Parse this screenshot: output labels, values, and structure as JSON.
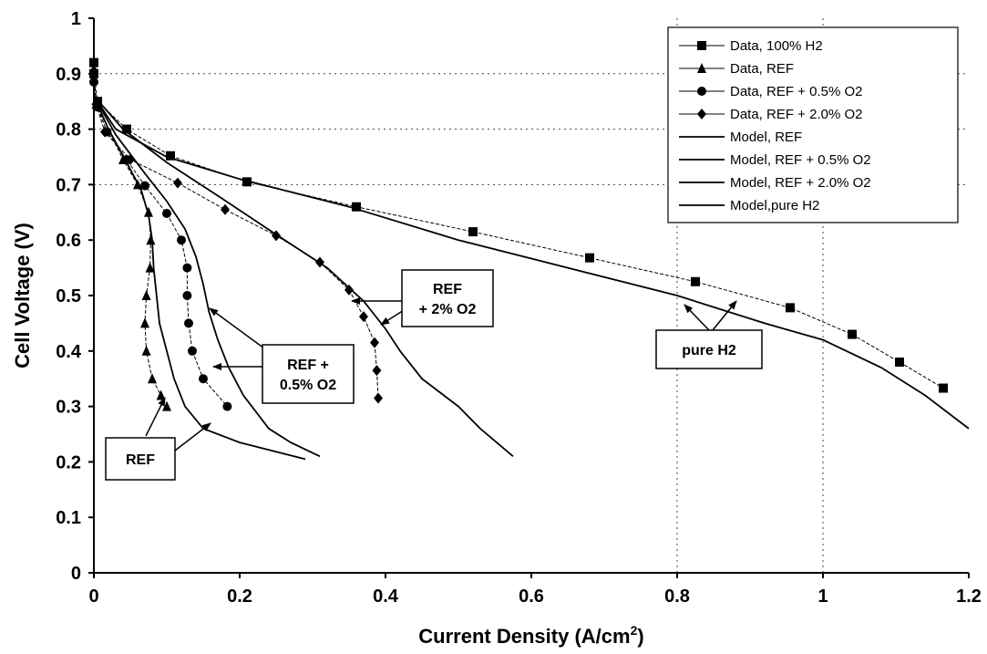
{
  "chart_data": {
    "type": "line",
    "xlabel": "Current Density (A/cm",
    "xlabel_sup": "2",
    "xlabel_end": ")",
    "ylabel": "Cell Voltage (V)",
    "xlim": [
      0,
      1.2
    ],
    "ylim": [
      0,
      1
    ],
    "x_ticks": [
      "0",
      "0.2",
      "0.4",
      "0.6",
      "0.8",
      "1",
      "1.2"
    ],
    "x_tick_values": [
      0,
      0.2,
      0.4,
      0.6,
      0.8,
      1.0,
      1.2
    ],
    "y_ticks": [
      "0",
      "0.1",
      "0.2",
      "0.3",
      "0.4",
      "0.5",
      "0.6",
      "0.7",
      "0.8",
      "0.9",
      "1"
    ],
    "y_tick_values": [
      0,
      0.1,
      0.2,
      0.3,
      0.4,
      0.5,
      0.6,
      0.7,
      0.8,
      0.9,
      1.0
    ],
    "grid": "dotted gridlines at y = 0.7, 0.8, 0.9 and x = 0.8, 1.0",
    "legend_position": "top-right",
    "series": [
      {
        "name": "Data, 100% H2",
        "kind": "data",
        "marker": "square",
        "points": [
          [
            0,
            0.92
          ],
          [
            0,
            0.9
          ],
          [
            0.005,
            0.85
          ],
          [
            0.045,
            0.8
          ],
          [
            0.105,
            0.752
          ],
          [
            0.21,
            0.705
          ],
          [
            0.36,
            0.66
          ],
          [
            0.52,
            0.615
          ],
          [
            0.68,
            0.568
          ],
          [
            0.825,
            0.525
          ],
          [
            0.955,
            0.478
          ],
          [
            1.04,
            0.43
          ],
          [
            1.105,
            0.38
          ],
          [
            1.165,
            0.333
          ]
        ]
      },
      {
        "name": "Data, REF",
        "kind": "data",
        "marker": "triangle",
        "points": [
          [
            0,
            0.905
          ],
          [
            0.003,
            0.845
          ],
          [
            0.04,
            0.745
          ],
          [
            0.06,
            0.7
          ],
          [
            0.075,
            0.65
          ],
          [
            0.078,
            0.6
          ],
          [
            0.077,
            0.55
          ],
          [
            0.072,
            0.5
          ],
          [
            0.07,
            0.45
          ],
          [
            0.072,
            0.4
          ],
          [
            0.08,
            0.35
          ],
          [
            0.092,
            0.32
          ],
          [
            0.1,
            0.3
          ]
        ]
      },
      {
        "name": "Data, REF + 0.5% O2",
        "kind": "data",
        "marker": "circle",
        "points": [
          [
            0,
            0.885
          ],
          [
            0.005,
            0.84
          ],
          [
            0.018,
            0.795
          ],
          [
            0.045,
            0.745
          ],
          [
            0.07,
            0.698
          ],
          [
            0.1,
            0.648
          ],
          [
            0.12,
            0.6
          ],
          [
            0.128,
            0.55
          ],
          [
            0.128,
            0.5
          ],
          [
            0.13,
            0.45
          ],
          [
            0.135,
            0.4
          ],
          [
            0.15,
            0.35
          ],
          [
            0.183,
            0.3
          ]
        ]
      },
      {
        "name": "Data, REF + 2.0% O2",
        "kind": "data",
        "marker": "diamond",
        "points": [
          [
            0,
            0.905
          ],
          [
            0.003,
            0.845
          ],
          [
            0.015,
            0.795
          ],
          [
            0.05,
            0.745
          ],
          [
            0.115,
            0.703
          ],
          [
            0.18,
            0.655
          ],
          [
            0.25,
            0.608
          ],
          [
            0.31,
            0.56
          ],
          [
            0.35,
            0.51
          ],
          [
            0.37,
            0.462
          ],
          [
            0.385,
            0.415
          ],
          [
            0.388,
            0.365
          ],
          [
            0.39,
            0.315
          ]
        ]
      },
      {
        "name": "Model, REF",
        "kind": "model",
        "points": [
          [
            0,
            0.86
          ],
          [
            0.02,
            0.8
          ],
          [
            0.045,
            0.74
          ],
          [
            0.065,
            0.69
          ],
          [
            0.075,
            0.645
          ],
          [
            0.08,
            0.6
          ],
          [
            0.082,
            0.55
          ],
          [
            0.086,
            0.5
          ],
          [
            0.09,
            0.45
          ],
          [
            0.1,
            0.4
          ],
          [
            0.11,
            0.35
          ],
          [
            0.125,
            0.3
          ],
          [
            0.15,
            0.26
          ],
          [
            0.2,
            0.235
          ],
          [
            0.29,
            0.205
          ]
        ]
      },
      {
        "name": "Model, REF + 0.5% O2",
        "kind": "model",
        "points": [
          [
            0,
            0.86
          ],
          [
            0.03,
            0.79
          ],
          [
            0.07,
            0.72
          ],
          [
            0.1,
            0.67
          ],
          [
            0.125,
            0.62
          ],
          [
            0.14,
            0.57
          ],
          [
            0.15,
            0.52
          ],
          [
            0.158,
            0.47
          ],
          [
            0.17,
            0.42
          ],
          [
            0.185,
            0.37
          ],
          [
            0.205,
            0.32
          ],
          [
            0.24,
            0.26
          ],
          [
            0.27,
            0.235
          ],
          [
            0.31,
            0.21
          ]
        ]
      },
      {
        "name": "Model, REF + 2.0% O2",
        "kind": "model",
        "points": [
          [
            0,
            0.86
          ],
          [
            0.04,
            0.8
          ],
          [
            0.1,
            0.74
          ],
          [
            0.17,
            0.68
          ],
          [
            0.25,
            0.61
          ],
          [
            0.32,
            0.55
          ],
          [
            0.37,
            0.49
          ],
          [
            0.4,
            0.44
          ],
          [
            0.42,
            0.4
          ],
          [
            0.45,
            0.35
          ],
          [
            0.5,
            0.3
          ],
          [
            0.53,
            0.26
          ],
          [
            0.575,
            0.21
          ]
        ]
      },
      {
        "name": "Model,pure H2",
        "kind": "model",
        "points": [
          [
            0,
            0.86
          ],
          [
            0.03,
            0.8
          ],
          [
            0.1,
            0.75
          ],
          [
            0.2,
            0.71
          ],
          [
            0.35,
            0.66
          ],
          [
            0.5,
            0.6
          ],
          [
            0.65,
            0.55
          ],
          [
            0.8,
            0.5
          ],
          [
            0.92,
            0.45
          ],
          [
            1.0,
            0.42
          ],
          [
            1.08,
            0.37
          ],
          [
            1.14,
            0.32
          ],
          [
            1.2,
            0.26
          ]
        ]
      }
    ],
    "annotations": [
      {
        "lines": [
          "REF"
        ]
      },
      {
        "lines": [
          "REF +",
          "0.5% O2"
        ]
      },
      {
        "lines": [
          "REF",
          "+ 2% O2"
        ]
      },
      {
        "lines": [
          "pure H2"
        ]
      }
    ]
  }
}
